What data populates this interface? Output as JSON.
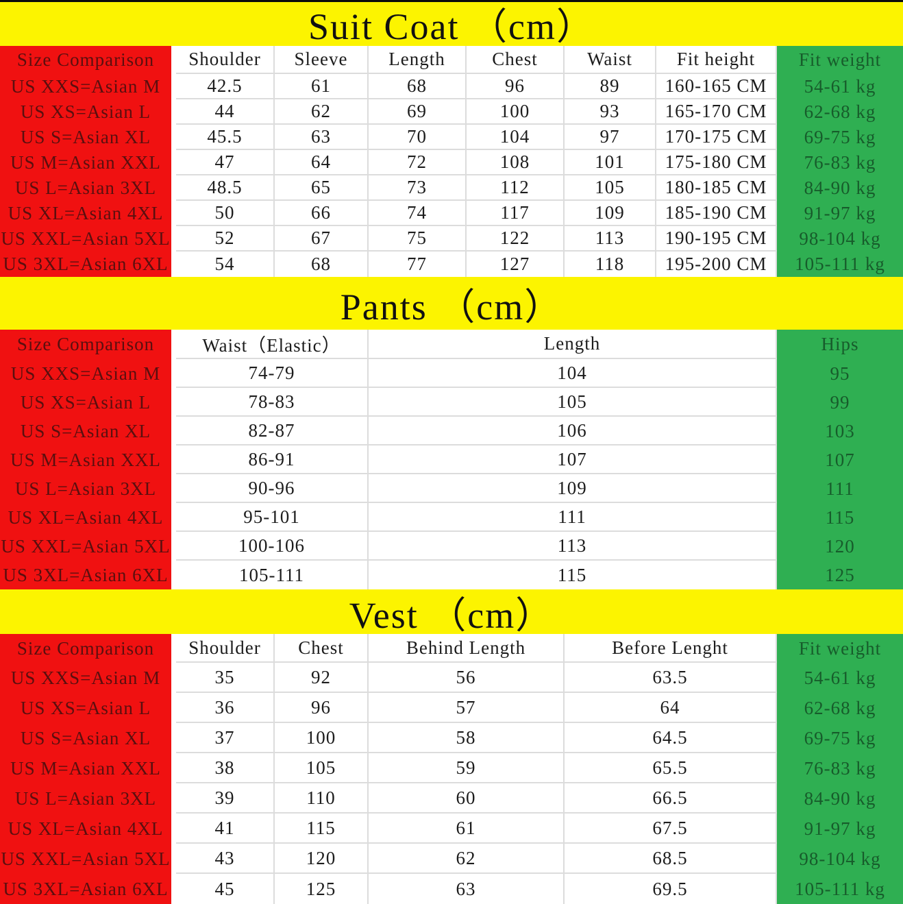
{
  "colors": {
    "title_band_bg": "#FCF400",
    "title_text": "#111111",
    "size_column_bg": "#F01111",
    "size_column_text": "#5A0F0F",
    "weight_column_bg": "#2FAF52",
    "weight_column_text": "#175C2B",
    "grid_line": "#DCDCDC",
    "cell_text": "#1C1C1C",
    "page_bg": "#FFFFFF"
  },
  "chart_data": [
    {
      "type": "table",
      "title": "Suit Coat （cm）",
      "columns": [
        "Size Comparison",
        "Shoulder",
        "Sleeve",
        "Length",
        "Chest",
        "Waist",
        "Fit height",
        "Fit weight"
      ],
      "rows": [
        [
          "US XXS=Asian M",
          "42.5",
          "61",
          "68",
          "96",
          "89",
          "160-165 CM",
          "54-61 kg"
        ],
        [
          "US XS=Asian L",
          "44",
          "62",
          "69",
          "100",
          "93",
          "165-170 CM",
          "62-68 kg"
        ],
        [
          "US S=Asian XL",
          "45.5",
          "63",
          "70",
          "104",
          "97",
          "170-175 CM",
          "69-75 kg"
        ],
        [
          "US M=Asian XXL",
          "47",
          "64",
          "72",
          "108",
          "101",
          "175-180 CM",
          "76-83 kg"
        ],
        [
          "US L=Asian 3XL",
          "48.5",
          "65",
          "73",
          "112",
          "105",
          "180-185 CM",
          "84-90 kg"
        ],
        [
          "US XL=Asian 4XL",
          "50",
          "66",
          "74",
          "117",
          "109",
          "185-190 CM",
          "91-97 kg"
        ],
        [
          "US XXL=Asian 5XL",
          "52",
          "67",
          "75",
          "122",
          "113",
          "190-195 CM",
          "98-104 kg"
        ],
        [
          "US 3XL=Asian 6XL",
          "54",
          "68",
          "77",
          "127",
          "118",
          "195-200 CM",
          "105-111 kg"
        ]
      ]
    },
    {
      "type": "table",
      "title": "Pants （cm）",
      "columns": [
        "Size Comparison",
        "Waist（Elastic）",
        "Length",
        "Hips"
      ],
      "rows": [
        [
          "US XXS=Asian M",
          "74-79",
          "104",
          "95"
        ],
        [
          "US XS=Asian L",
          "78-83",
          "105",
          "99"
        ],
        [
          "US S=Asian XL",
          "82-87",
          "106",
          "103"
        ],
        [
          "US M=Asian XXL",
          "86-91",
          "107",
          "107"
        ],
        [
          "US L=Asian 3XL",
          "90-96",
          "109",
          "111"
        ],
        [
          "US XL=Asian 4XL",
          "95-101",
          "111",
          "115"
        ],
        [
          "US XXL=Asian 5XL",
          "100-106",
          "113",
          "120"
        ],
        [
          "US 3XL=Asian 6XL",
          "105-111",
          "115",
          "125"
        ]
      ]
    },
    {
      "type": "table",
      "title": "Vest （cm）",
      "columns": [
        "Size Comparison",
        "Shoulder",
        "Chest",
        "Behind Length",
        "Before Lenght",
        "Fit weight"
      ],
      "rows": [
        [
          "US XXS=Asian M",
          "35",
          "92",
          "56",
          "63.5",
          "54-61 kg"
        ],
        [
          "US XS=Asian L",
          "36",
          "96",
          "57",
          "64",
          "62-68 kg"
        ],
        [
          "US S=Asian XL",
          "37",
          "100",
          "58",
          "64.5",
          "69-75 kg"
        ],
        [
          "US M=Asian XXL",
          "38",
          "105",
          "59",
          "65.5",
          "76-83 kg"
        ],
        [
          "US L=Asian 3XL",
          "39",
          "110",
          "60",
          "66.5",
          "84-90 kg"
        ],
        [
          "US XL=Asian 4XL",
          "41",
          "115",
          "61",
          "67.5",
          "91-97 kg"
        ],
        [
          "US XXL=Asian 5XL",
          "43",
          "120",
          "62",
          "68.5",
          "98-104 kg"
        ],
        [
          "US 3XL=Asian 6XL",
          "45",
          "125",
          "63",
          "69.5",
          "105-111 kg"
        ]
      ]
    }
  ]
}
